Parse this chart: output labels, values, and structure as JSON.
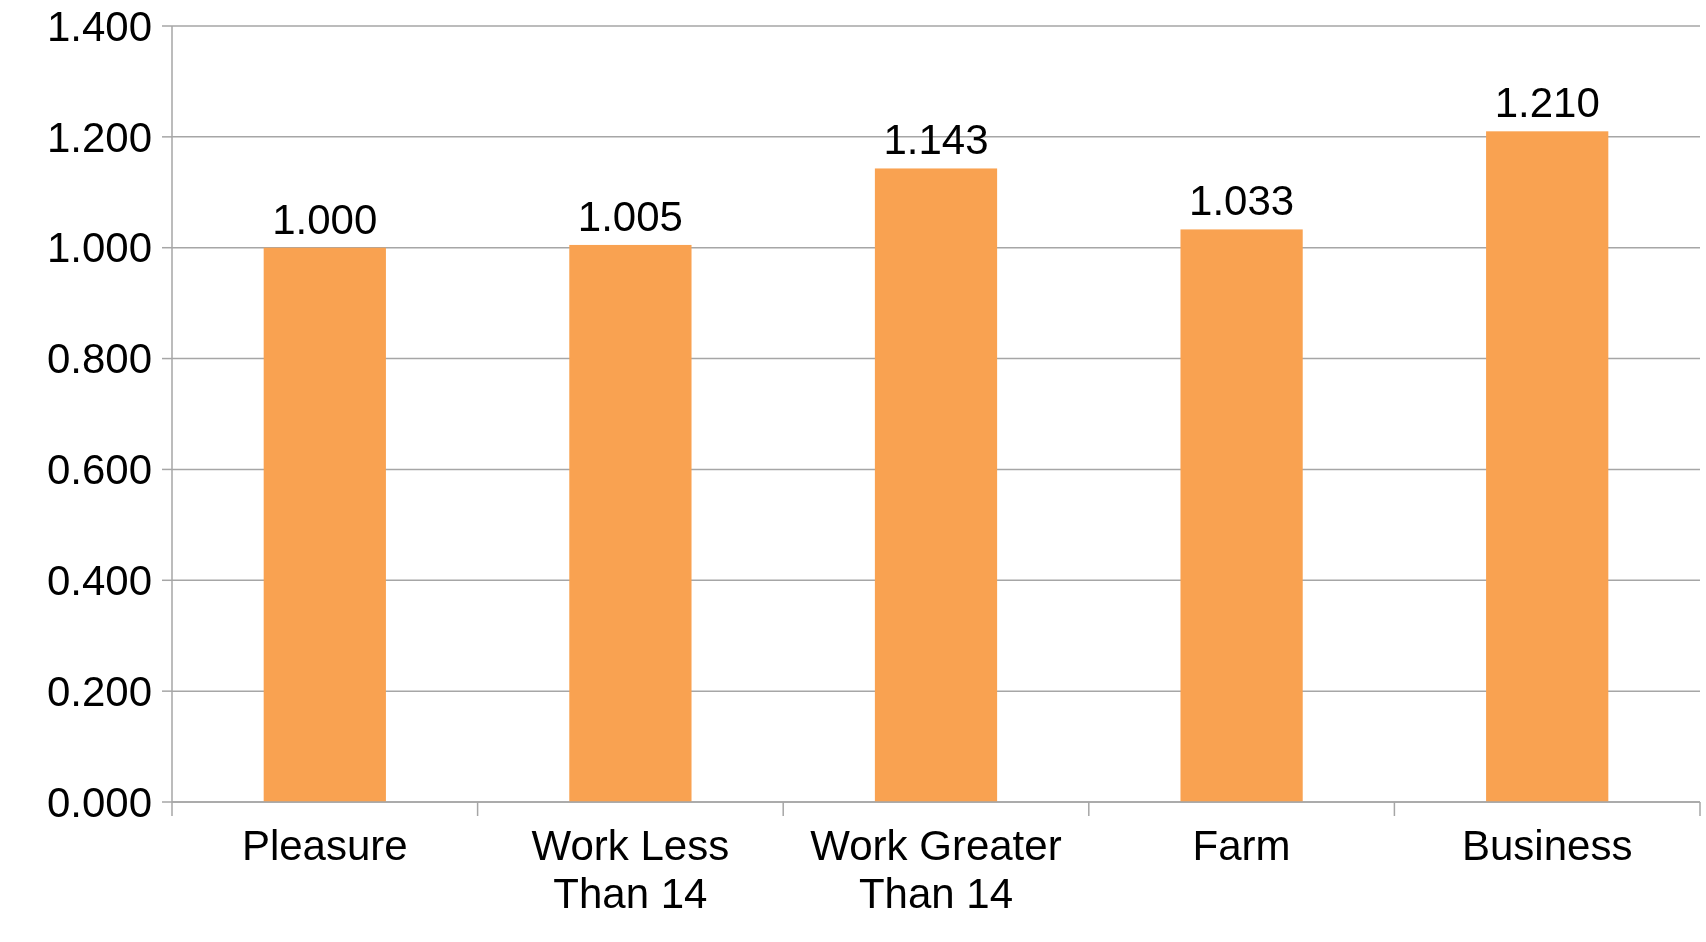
{
  "chart_data": {
    "type": "bar",
    "categories": [
      "Pleasure",
      "Work Less Than 14",
      "Work Greater Than 14",
      "Farm",
      "Business"
    ],
    "values": [
      1.0,
      1.005,
      1.143,
      1.033,
      1.21
    ],
    "value_labels": [
      "1.000",
      "1.005",
      "1.143",
      "1.033",
      "1.210"
    ],
    "color": "#f9a251",
    "ylim": [
      0,
      1.4
    ],
    "yticks": [
      {
        "value": 0,
        "label": "0.000"
      },
      {
        "value": 0.2,
        "label": "0.200"
      },
      {
        "value": 0.4,
        "label": "0.400"
      },
      {
        "value": 0.6,
        "label": "0.600"
      },
      {
        "value": 0.8,
        "label": "0.800"
      },
      {
        "value": 1.0,
        "label": "1.000"
      },
      {
        "value": 1.2,
        "label": "1.200"
      },
      {
        "value": 1.4,
        "label": "1.400"
      }
    ],
    "grid": "y"
  }
}
